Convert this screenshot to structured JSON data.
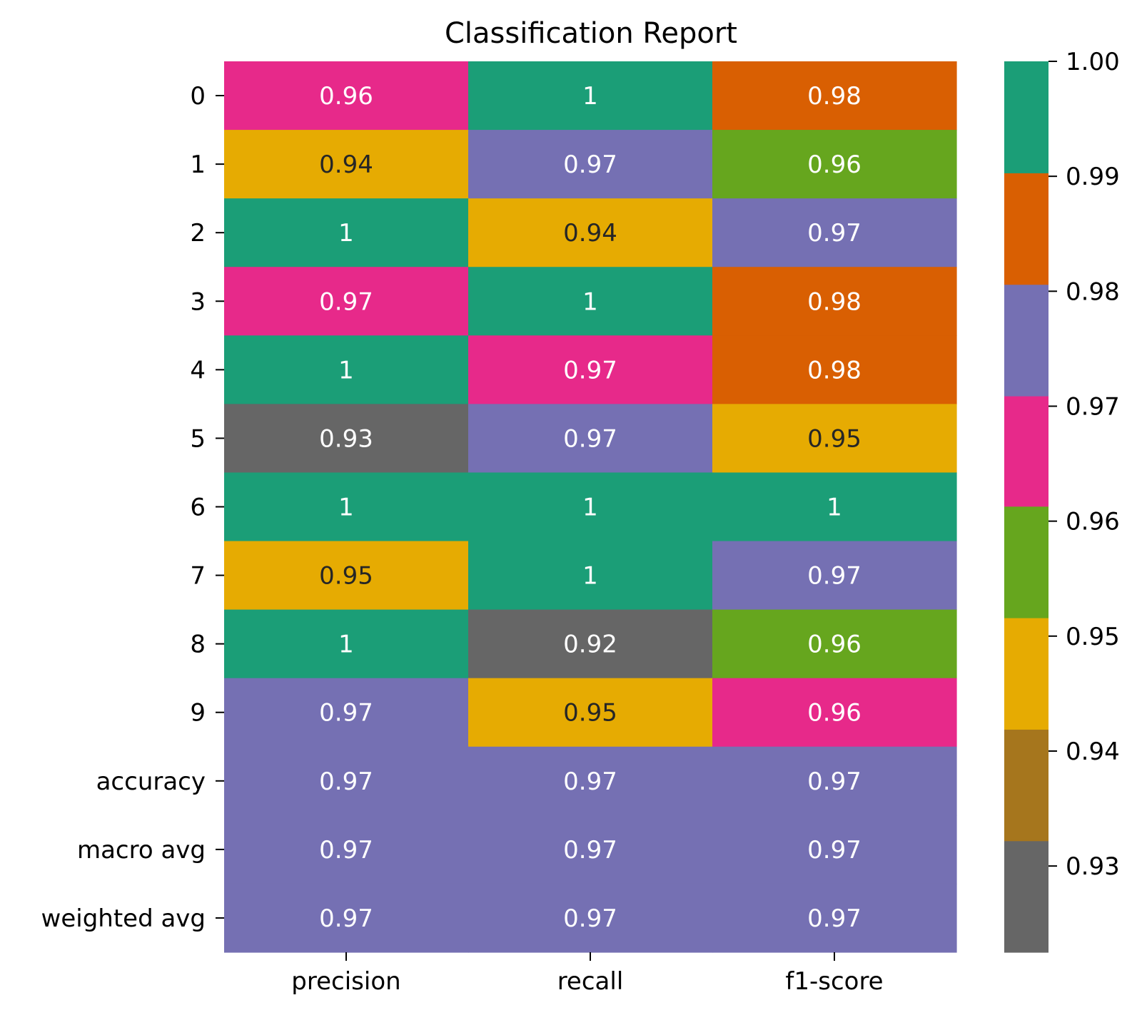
{
  "chart_data": {
    "type": "heatmap",
    "title": "Classification Report",
    "xlabel": "",
    "ylabel": "",
    "columns": [
      "precision",
      "recall",
      "f1-score"
    ],
    "rows": [
      "0",
      "1",
      "2",
      "3",
      "4",
      "5",
      "6",
      "7",
      "8",
      "9",
      "accuracy",
      "macro avg",
      "weighted avg"
    ],
    "values": [
      [
        0.96,
        1,
        0.98
      ],
      [
        0.94,
        0.97,
        0.96
      ],
      [
        1,
        0.94,
        0.97
      ],
      [
        0.97,
        1,
        0.98
      ],
      [
        1,
        0.97,
        0.98
      ],
      [
        0.93,
        0.97,
        0.95
      ],
      [
        1,
        1,
        1
      ],
      [
        0.95,
        1,
        0.97
      ],
      [
        1,
        0.92,
        0.96
      ],
      [
        0.97,
        0.95,
        0.96
      ],
      [
        0.97,
        0.97,
        0.97
      ],
      [
        0.97,
        0.97,
        0.97
      ],
      [
        0.97,
        0.97,
        0.97
      ]
    ],
    "colors": [
      [
        "#e7298a",
        "#1b9e77",
        "#d95f02"
      ],
      [
        "#e6ab02",
        "#7570b3",
        "#66a61e"
      ],
      [
        "#1b9e77",
        "#e6ab02",
        "#7570b3"
      ],
      [
        "#e7298a",
        "#1b9e77",
        "#d95f02"
      ],
      [
        "#1b9e77",
        "#e7298a",
        "#d95f02"
      ],
      [
        "#666666",
        "#7570b3",
        "#e6ab02"
      ],
      [
        "#1b9e77",
        "#1b9e77",
        "#1b9e77"
      ],
      [
        "#e6ab02",
        "#1b9e77",
        "#7570b3"
      ],
      [
        "#1b9e77",
        "#666666",
        "#66a61e"
      ],
      [
        "#7570b3",
        "#e6ab02",
        "#e7298a"
      ],
      [
        "#7570b3",
        "#7570b3",
        "#7570b3"
      ],
      [
        "#7570b3",
        "#7570b3",
        "#7570b3"
      ],
      [
        "#7570b3",
        "#7570b3",
        "#7570b3"
      ]
    ],
    "dark_label_color": "#262626",
    "light_label_color": "#ffffff",
    "dark_label_backgrounds": [
      "#e6ab02"
    ],
    "colorbar": {
      "ticks": [
        "1.00",
        "0.99",
        "0.98",
        "0.97",
        "0.96",
        "0.95",
        "0.94",
        "0.93"
      ],
      "tick_values": [
        1.0,
        0.99,
        0.98,
        0.97,
        0.96,
        0.95,
        0.94,
        0.93
      ],
      "range": [
        0.9225,
        1.0
      ],
      "bands": [
        {
          "from": 0.9225,
          "to": 0.9322,
          "color": "#666666"
        },
        {
          "from": 0.9322,
          "to": 0.9419,
          "color": "#a6761d"
        },
        {
          "from": 0.9419,
          "to": 0.9516,
          "color": "#e6ab02"
        },
        {
          "from": 0.9516,
          "to": 0.9613,
          "color": "#66a61e"
        },
        {
          "from": 0.9613,
          "to": 0.9709,
          "color": "#e7298a"
        },
        {
          "from": 0.9709,
          "to": 0.9806,
          "color": "#7570b3"
        },
        {
          "from": 0.9806,
          "to": 0.9903,
          "color": "#d95f02"
        },
        {
          "from": 0.9903,
          "to": 1.0,
          "color": "#1b9e77"
        }
      ]
    },
    "grid": false,
    "legend": "right (colorbar)"
  }
}
